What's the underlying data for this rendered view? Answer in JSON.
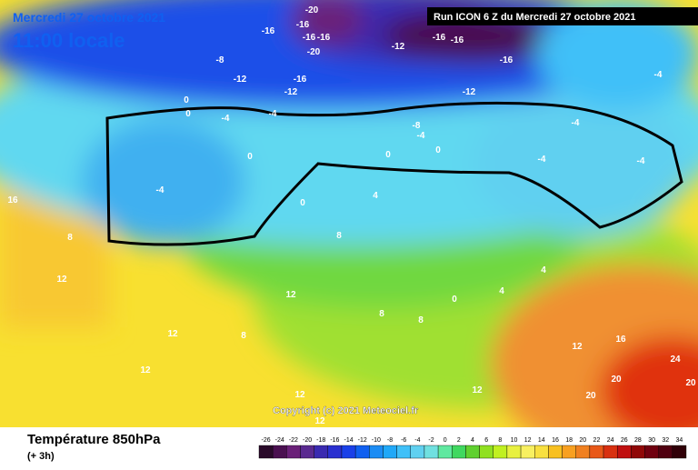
{
  "header": {
    "date": "Mercredi 27 octobre 2021",
    "time": "11:00 locale",
    "run": "Run ICON 6 Z du Mercredi 27 octobre 2021"
  },
  "map": {
    "contour_labels": [
      -20,
      -16,
      -16,
      -16,
      -16,
      -20,
      -16,
      -16,
      -12,
      -16,
      -12,
      -8,
      -12,
      -16,
      -12,
      -8,
      -4,
      -4,
      -4,
      -4,
      -4,
      0,
      0,
      0,
      0,
      0,
      -4,
      0,
      -4,
      -4,
      4,
      4,
      8,
      8,
      12,
      12,
      12,
      12,
      8,
      16,
      8,
      8,
      0,
      4,
      12,
      16,
      20,
      20,
      24,
      20,
      12,
      12,
      12
    ],
    "copyright": "Copyright (c) 2021 Meteociel.fr"
  },
  "footer": {
    "title": "Température 850hPa",
    "subtitle": "(+ 3h)"
  },
  "colorbar": {
    "values": [
      -26,
      -24,
      -22,
      -20,
      -18,
      -16,
      -14,
      -12,
      -10,
      -8,
      -6,
      -4,
      -2,
      0,
      2,
      4,
      6,
      8,
      10,
      12,
      14,
      16,
      18,
      20,
      22,
      24,
      26,
      28,
      30,
      32,
      34
    ],
    "colors": [
      "#2a0a2a",
      "#4a1050",
      "#6a2078",
      "#5a2a90",
      "#3a2ab0",
      "#2a30d0",
      "#1a40e8",
      "#1060f0",
      "#1c8cf4",
      "#20a8f8",
      "#40c0f8",
      "#60d0f0",
      "#70e0e0",
      "#60e8a0",
      "#40d860",
      "#60d030",
      "#90e020",
      "#c0f020",
      "#e8f040",
      "#f8f060",
      "#f8e040",
      "#f8c020",
      "#f8a020",
      "#f08020",
      "#e85818",
      "#d83010",
      "#c01010",
      "#900808",
      "#700010",
      "#500010",
      "#300008"
    ]
  }
}
